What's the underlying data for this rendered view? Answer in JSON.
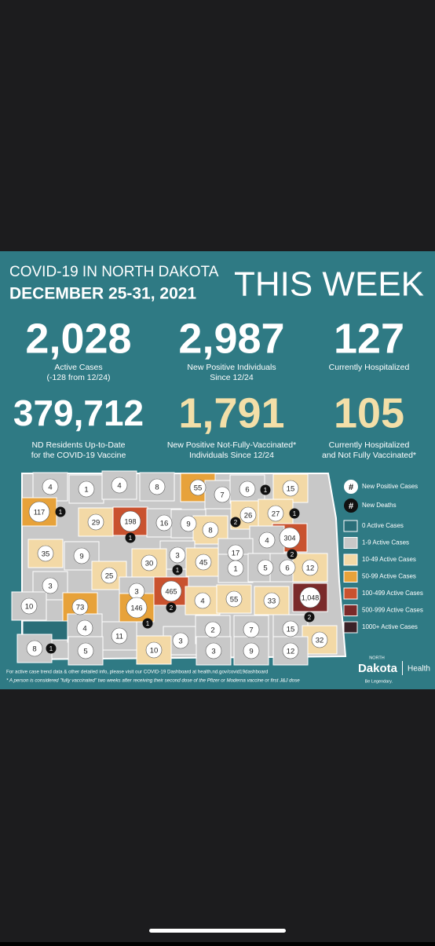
{
  "header": {
    "title": "COVID-19 IN NORTH DAKOTA",
    "dates": "DECEMBER 25-31, 2021",
    "banner": "THIS WEEK"
  },
  "stats": [
    {
      "value": "2,028",
      "lines": [
        "Active Cases",
        "(-128 from 12/24)"
      ]
    },
    {
      "value": "2,987",
      "lines": [
        "New Positive Individuals",
        "Since 12/24"
      ]
    },
    {
      "value": "127",
      "lines": [
        "Currently Hospitalized"
      ]
    },
    {
      "value": "379,712",
      "lines": [
        "ND Residents Up-to-Date",
        "for the COVID-19 Vaccine"
      ]
    },
    {
      "value": "1,791",
      "lines": [
        "New Positive Not-Fully-Vaccinated*",
        "Individuals Since 12/24"
      ]
    },
    {
      "value": "105",
      "lines": [
        "Currently Hospitalized",
        "and Not Fully Vaccinated*"
      ]
    }
  ],
  "legend": [
    {
      "symbol": "#",
      "label": "New Positive Cases"
    },
    {
      "symbol": "#",
      "label": "New Deaths"
    }
  ],
  "color_key": [
    {
      "label": "0 Active Cases",
      "color": "#2a6e78"
    },
    {
      "label": "1-9 Active Cases",
      "color": "#c8c8c8"
    },
    {
      "label": "10-49 Active Cases",
      "color": "#f3d9a6"
    },
    {
      "label": "50-99 Active Cases",
      "color": "#e7a23a"
    },
    {
      "label": "100-499 Active Cases",
      "color": "#c9522f"
    },
    {
      "label": "500-999 Active Cases",
      "color": "#7a2a2a"
    },
    {
      "label": "1000+ Active Cases",
      "color": "#3a2228"
    }
  ],
  "counties": [
    {
      "cases": "4",
      "color": "#c8c8c8"
    },
    {
      "cases": "1",
      "color": "#c8c8c8"
    },
    {
      "cases": "4",
      "color": "#c8c8c8"
    },
    {
      "cases": "8",
      "color": "#c8c8c8"
    },
    {
      "cases": "55",
      "color": "#e7a23a"
    },
    {
      "cases": "7",
      "color": "#c8c8c8"
    },
    {
      "cases": "6",
      "deaths": "1",
      "color": "#c8c8c8"
    },
    {
      "cases": "15",
      "color": "#f3d9a6"
    },
    {
      "cases": "117",
      "deaths": "1",
      "color": "#e7a23a"
    },
    {
      "cases": "29",
      "color": "#f3d9a6"
    },
    {
      "cases": "198",
      "deaths": "1",
      "color": "#c9522f"
    },
    {
      "cases": "16",
      "color": "#c8c8c8"
    },
    {
      "cases": "9",
      "color": "#c8c8c8"
    },
    {
      "cases": "8",
      "deaths": "2",
      "color": "#f3d9a6"
    },
    {
      "cases": "26",
      "color": "#f3d9a6"
    },
    {
      "cases": "27",
      "deaths": "1",
      "color": "#f3d9a6"
    },
    {
      "cases": "304",
      "deaths": "2",
      "color": "#c9522f"
    },
    {
      "cases": "4",
      "color": "#c8c8c8"
    },
    {
      "cases": "35",
      "color": "#f3d9a6"
    },
    {
      "cases": "9",
      "color": "#c8c8c8"
    },
    {
      "cases": "3",
      "deaths": "1",
      "color": "#c8c8c8"
    },
    {
      "cases": "30",
      "color": "#f3d9a6"
    },
    {
      "cases": "45",
      "color": "#f3d9a6"
    },
    {
      "cases": "17",
      "color": "#c8c8c8"
    },
    {
      "cases": "1",
      "color": "#c8c8c8"
    },
    {
      "cases": "5",
      "color": "#c8c8c8"
    },
    {
      "cases": "6",
      "color": "#c8c8c8"
    },
    {
      "cases": "12",
      "color": "#f3d9a6"
    },
    {
      "cases": "25",
      "color": "#f3d9a6"
    },
    {
      "cases": "3",
      "color": "#c8c8c8"
    },
    {
      "cases": "3",
      "color": "#c8c8c8"
    },
    {
      "cases": "465",
      "deaths": "2",
      "color": "#c9522f"
    },
    {
      "cases": "4",
      "color": "#f3d9a6"
    },
    {
      "cases": "55",
      "color": "#f3d9a6"
    },
    {
      "cases": "33",
      "color": "#f3d9a6"
    },
    {
      "cases": "1,048",
      "deaths": "2",
      "color": "#7a2a2a"
    },
    {
      "cases": "10",
      "color": "#c8c8c8"
    },
    {
      "cases": "73",
      "color": "#e7a23a"
    },
    {
      "cases": "146",
      "deaths": "1",
      "color": "#e7a23a"
    },
    {
      "cases": "4",
      "color": "#c8c8c8"
    },
    {
      "cases": "11",
      "color": "#c8c8c8"
    },
    {
      "cases": "3",
      "color": "#c8c8c8"
    },
    {
      "cases": "2",
      "color": "#c8c8c8"
    },
    {
      "cases": "7",
      "color": "#c8c8c8"
    },
    {
      "cases": "15",
      "color": "#c8c8c8"
    },
    {
      "cases": "32",
      "color": "#f3d9a6"
    },
    {
      "cases": "8",
      "deaths": "1",
      "color": "#c8c8c8"
    },
    {
      "cases": "5",
      "color": "#c8c8c8"
    },
    {
      "cases": "10",
      "color": "#f3d9a6"
    },
    {
      "cases": "3",
      "color": "#c8c8c8"
    },
    {
      "cases": "9",
      "color": "#c8c8c8"
    },
    {
      "cases": "12",
      "color": "#c8c8c8"
    }
  ],
  "footer": [
    "For active case trend data & other detailed info, please visit our COVID-19 Dashboard at health.nd.gov/covid19dashboard",
    "* A person is considered \"fully vaccinated\" two weeks after receiving their second dose of the Pfizer or Moderna vaccine or first J&J dose"
  ],
  "logo": {
    "small": "NORTH",
    "name": "Dakota",
    "dept": "Health",
    "tagline": "Be Legendary."
  }
}
